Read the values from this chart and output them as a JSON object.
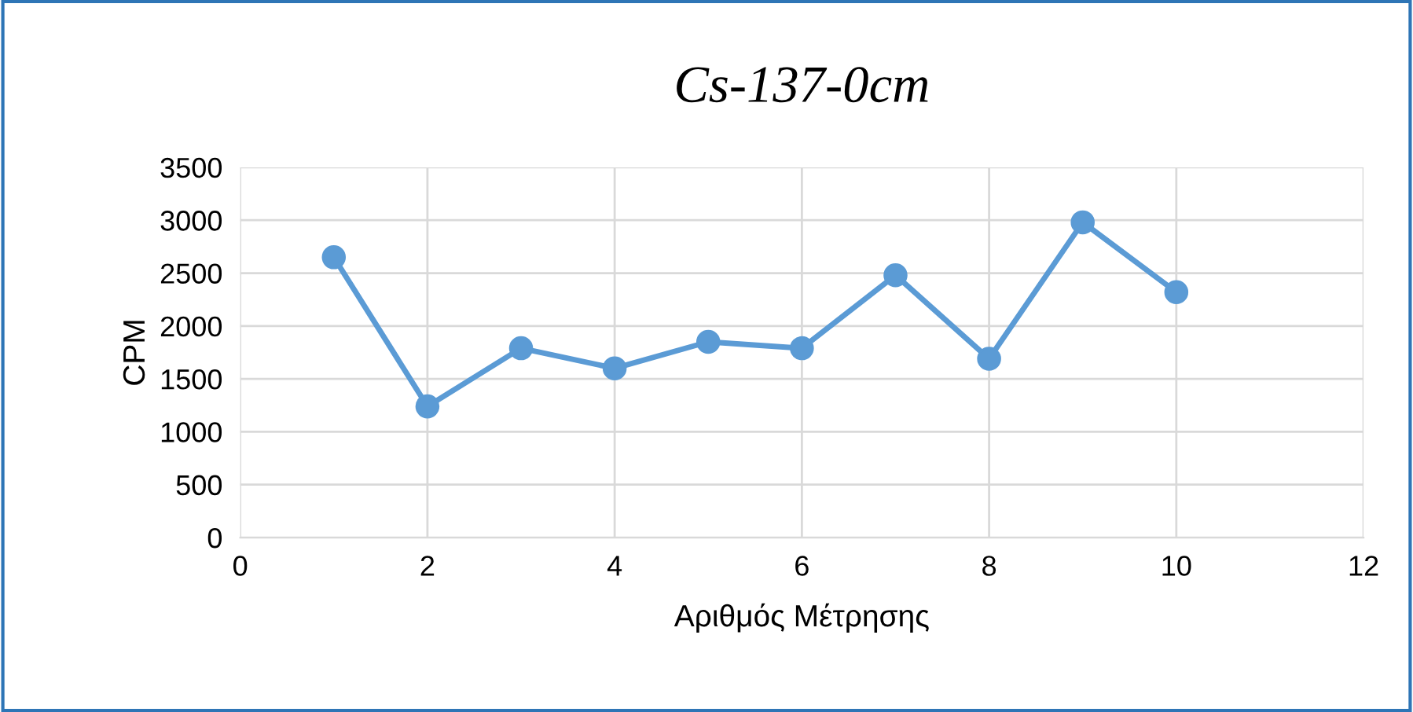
{
  "chart_data": {
    "type": "line",
    "title": "Cs-137-0cm",
    "xlabel": "Αριθμός Μέτρησης",
    "ylabel": "CPM",
    "x": [
      1,
      2,
      3,
      4,
      5,
      6,
      7,
      8,
      9,
      10
    ],
    "series": [
      {
        "color": "#5b9bd5",
        "values": [
          2650,
          1240,
          1790,
          1600,
          1850,
          1790,
          2480,
          1690,
          2980,
          2320
        ]
      }
    ],
    "marker": "circle",
    "line_style": "solid",
    "xlim": [
      0,
      12
    ],
    "xticks": [
      0,
      2,
      4,
      6,
      8,
      10,
      12
    ],
    "ylim": [
      0,
      3500
    ],
    "yticks": [
      0,
      500,
      1000,
      1500,
      2000,
      2500,
      3000,
      3500
    ],
    "grid": true,
    "legend": false
  }
}
